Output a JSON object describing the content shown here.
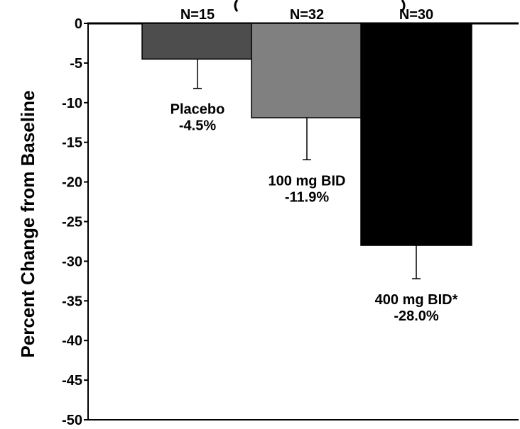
{
  "chart_data": {
    "type": "bar",
    "title": "",
    "xlabel": "",
    "ylabel": "Percent Change from Baseline",
    "ylim": [
      -50,
      0
    ],
    "yticks": [
      0,
      -5,
      -10,
      -15,
      -20,
      -25,
      -30,
      -35,
      -40,
      -45,
      -50
    ],
    "grid": false,
    "legend": "none",
    "categories": [
      "Placebo",
      "100 mg BID",
      "400 mg BID*"
    ],
    "values": [
      -4.5,
      -11.9,
      -28.0
    ],
    "value_labels": [
      "-4.5%",
      "-11.9%",
      "-28.0%"
    ],
    "error_low": [
      -8.2,
      -17.2,
      -32.2
    ],
    "n_labels": [
      "N=15",
      "N=32",
      "N=30"
    ],
    "colors": [
      "#4d4d4d",
      "#808080",
      "#000000"
    ]
  }
}
